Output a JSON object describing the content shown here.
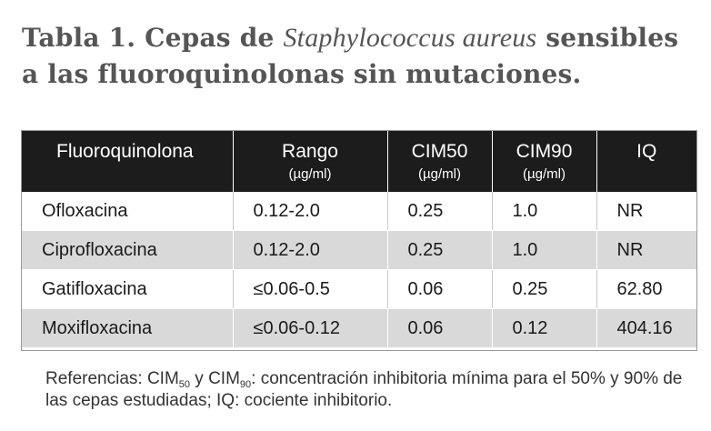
{
  "title": {
    "prefix": "Tabla 1. Cepas de ",
    "italic": "Staphylococcus aureus",
    "suffix": " sensibles a las fluoroquinolonas sin mutaciones."
  },
  "table": {
    "headers": [
      {
        "label": "Fluoroquinolona",
        "unit": ""
      },
      {
        "label": "Rango",
        "unit": "(µg/ml)"
      },
      {
        "label": "CIM50",
        "unit": "(µg/ml)"
      },
      {
        "label": "CIM90",
        "unit": "(µg/ml)"
      },
      {
        "label": "IQ",
        "unit": ""
      }
    ],
    "rows": [
      [
        "Ofloxacina",
        "0.12-2.0",
        "0.25",
        "1.0",
        "NR"
      ],
      [
        "Ciprofloxacina",
        "0.12-2.0",
        "0.25",
        "1.0",
        "NR"
      ],
      [
        "Gatifloxacina",
        "≤0.06-0.5",
        "0.06",
        "0.25",
        "62.80"
      ],
      [
        "Moxifloxacina",
        "≤0.06-0.12",
        "0.06",
        "0.12",
        "404.16"
      ]
    ]
  },
  "footnote": {
    "part1": "Referencias: CIM",
    "sub1": "50",
    "part2": " y CIM",
    "sub2": "90",
    "part3": ": concentración inhibitoria mínima para el 50%  y 90% de las cepas estudiadas; IQ: cociente inhibitorio."
  },
  "colors": {
    "header_bg": "#1c1c1c",
    "stripe_bg": "#d9d9d9",
    "title_color": "#555555"
  }
}
